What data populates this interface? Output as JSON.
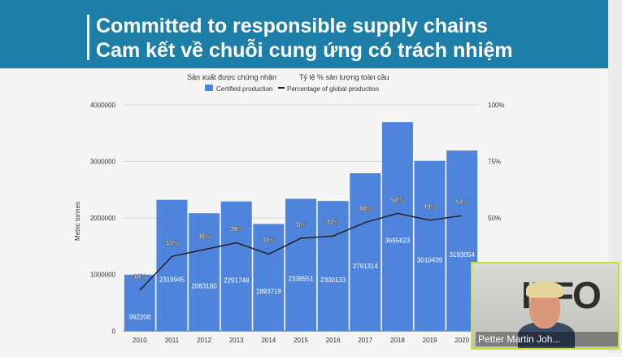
{
  "header": {
    "title_en": "Committed to responsible supply chains",
    "title_vi": "Cam kết về chuỗi cung ứng có trách nhiệm"
  },
  "colors": {
    "banner": "#1d7fa8",
    "bar": "#4f84dc",
    "line": "#222222"
  },
  "chart_data": {
    "type": "bar",
    "categories": [
      "2010",
      "2011",
      "2012",
      "2013",
      "2014",
      "2015",
      "2016",
      "2017",
      "2018",
      "2019",
      "2020"
    ],
    "series": [
      {
        "name": "Certified production",
        "kind": "bar",
        "axis": "left",
        "values": [
          992208,
          2319945,
          2083180,
          2291748,
          1893719,
          2338551,
          2300133,
          2791314,
          3695623,
          3010439,
          3193054
        ],
        "labels": [
          "992208",
          "2319945",
          "2083180",
          "2291748",
          "1893719",
          "2338551",
          "2300133",
          "2791314",
          "3695623",
          "3010439",
          "3193054"
        ]
      },
      {
        "name": "Percentage of global production",
        "kind": "line",
        "axis": "right",
        "values": [
          18,
          33,
          36,
          39,
          34,
          41,
          42,
          48,
          52,
          49,
          51
        ],
        "labels": [
          "18%",
          "33%",
          "36%",
          "39%",
          "34%",
          "41%",
          "42%",
          "48%",
          "52%",
          "49%",
          "51%"
        ]
      }
    ],
    "legend": {
      "left_heading": "Sản xuất được chứng nhận",
      "right_heading": "Tỷ lệ % sản lượng toàn cầu",
      "position": "top-center"
    },
    "ylabel": "Metric tonnes",
    "ylim": [
      0,
      4000000
    ],
    "yticks": [
      "0",
      "1000000",
      "2000000",
      "3000000",
      "4000000"
    ],
    "y2lim": [
      0,
      100
    ],
    "y2ticks": [
      "25%",
      "50%",
      "75%",
      "100%"
    ],
    "grid": true
  },
  "video": {
    "participant_name": "Petter Martin Joh...",
    "logo_text": "IFFO"
  }
}
